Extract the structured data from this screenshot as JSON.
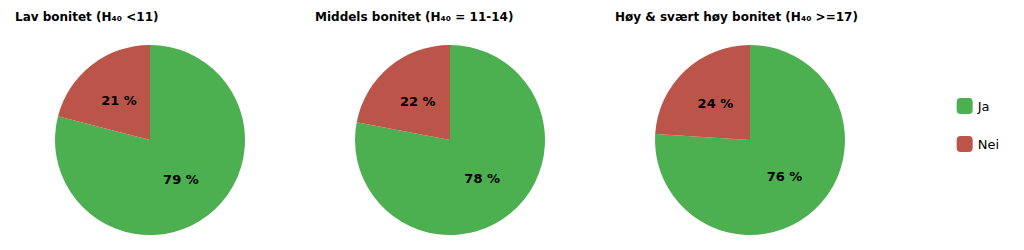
{
  "chart_data": [
    {
      "type": "pie",
      "title": "Lav bonitet (H₄₀ <11)",
      "categories": [
        "Ja",
        "Nei"
      ],
      "values": [
        79,
        21
      ],
      "value_labels": [
        "79 %",
        "21 %"
      ],
      "colors": [
        "#4CAF50",
        "#BC5549"
      ],
      "data_labels": true
    },
    {
      "type": "pie",
      "title": "Middels bonitet (H₄₀ = 11-14)",
      "categories": [
        "Ja",
        "Nei"
      ],
      "values": [
        78,
        22
      ],
      "value_labels": [
        "78 %",
        "22 %"
      ],
      "colors": [
        "#4CAF50",
        "#BC5549"
      ],
      "data_labels": true
    },
    {
      "type": "pie",
      "title": "Høy & svært høy bonitet (H₄₀ >=17)",
      "categories": [
        "Ja",
        "Nei"
      ],
      "values": [
        76,
        24
      ],
      "value_labels": [
        "76 %",
        "24 %"
      ],
      "colors": [
        "#4CAF50",
        "#BC5549"
      ],
      "data_labels": true,
      "legend": "right"
    }
  ]
}
